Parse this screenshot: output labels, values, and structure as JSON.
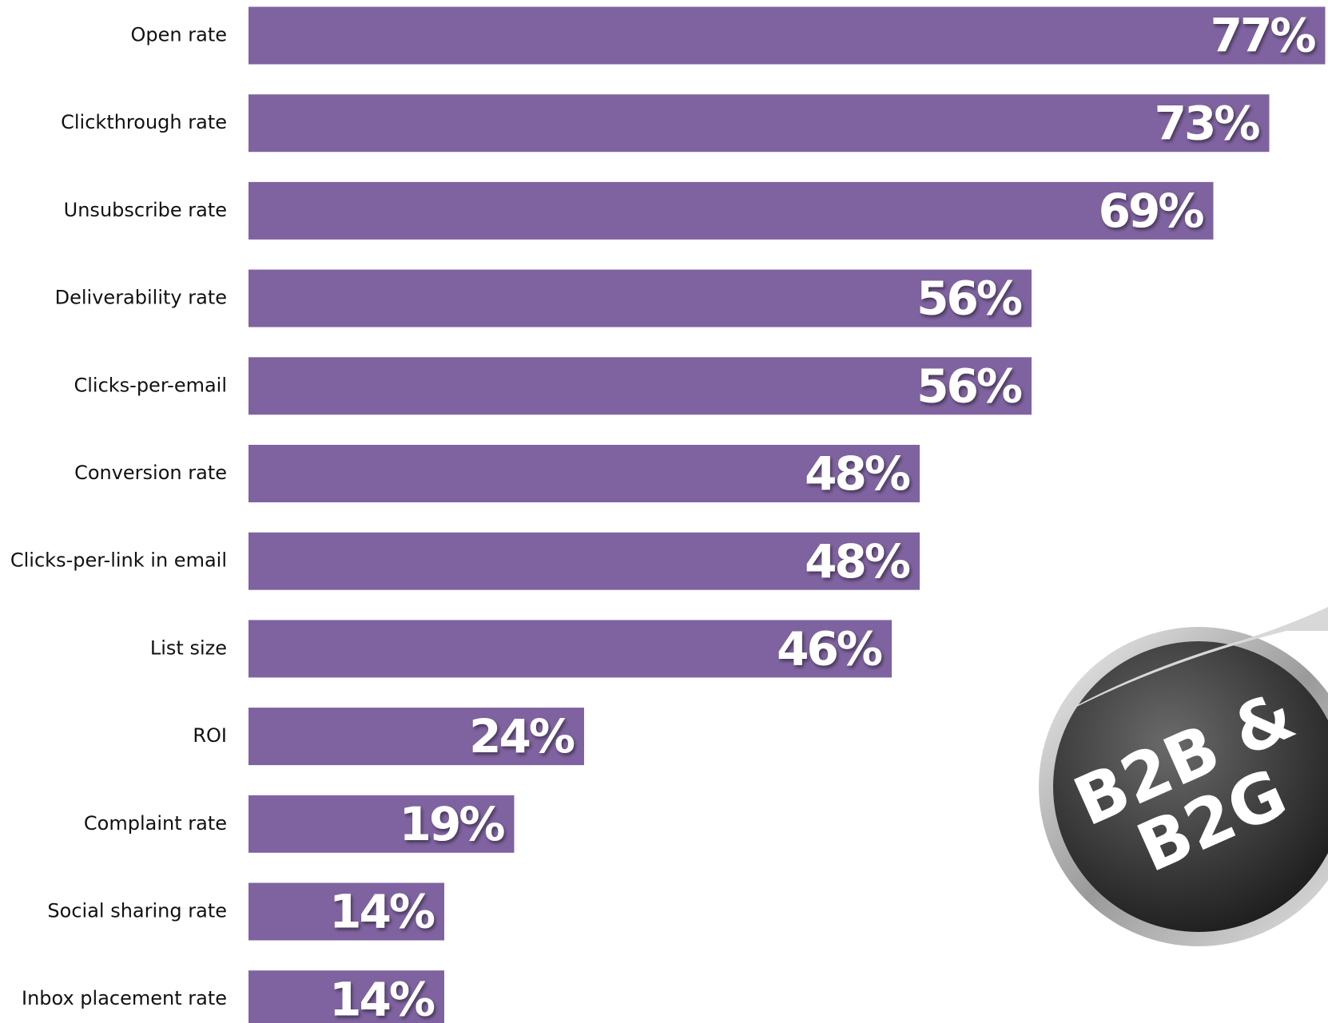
{
  "chart_data": {
    "type": "bar",
    "orientation": "horizontal",
    "color": "#7f63a0",
    "categories": [
      "Open rate",
      "Clickthrough rate",
      "Unsubscribe rate",
      "Deliverability rate",
      "Clicks-per-email",
      "Conversion rate",
      "Clicks-per-link in email",
      "List size",
      "ROI",
      "Complaint rate",
      "Social sharing rate",
      "Inbox placement rate"
    ],
    "values": [
      77,
      73,
      69,
      56,
      56,
      48,
      48,
      46,
      24,
      19,
      14,
      14
    ],
    "value_labels": [
      "77%",
      "73%",
      "69%",
      "56%",
      "56%",
      "48%",
      "48%",
      "46%",
      "24%",
      "19%",
      "14%",
      "14%"
    ]
  },
  "badge": [
    "B2B &",
    "B2G"
  ]
}
